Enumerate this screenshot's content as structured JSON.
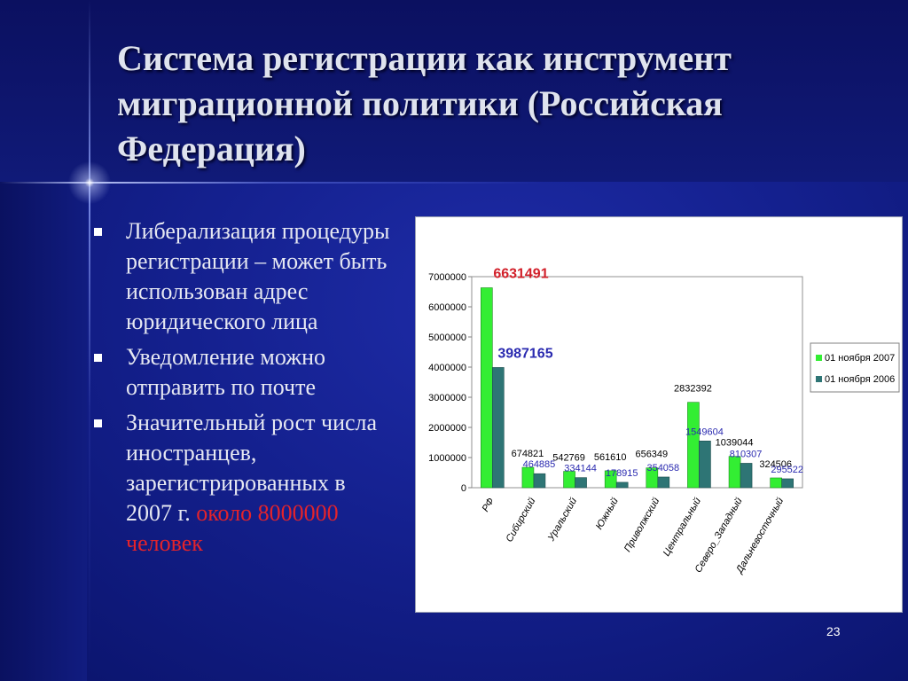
{
  "slide": {
    "title": "Система регистрации как инструмент миграционной политики (Российская Федерация)",
    "page_number": "23",
    "bullets": [
      {
        "text": "Либерализация процедуры регистрации – может быть использован адрес юридического лица"
      },
      {
        "text": "Уведомление можно отправить по почте"
      },
      {
        "text": "Значительный рост числа иностранцев, зарегистрированных в 2007 г. ",
        "highlight": "около 8000000 человек"
      }
    ]
  },
  "colors": {
    "series_2007": "#33ee33",
    "series_2006": "#2e7575",
    "label_2007": "#000000",
    "label_2006": "#2a2ab0",
    "label_rf_2007": "#d2202a",
    "highlight_text": "#e4232b"
  },
  "chart_data": {
    "type": "bar",
    "categories": [
      "РФ",
      "Сибирский",
      "Уральский",
      "Южный",
      "Приволжский",
      "Центральный",
      "Северо_Западный",
      "Дальневосточный"
    ],
    "series": [
      {
        "name": "01 ноября 2007",
        "values": [
          6631491,
          674821,
          542769,
          561610,
          656349,
          2832392,
          1039044,
          324506
        ]
      },
      {
        "name": "01 ноября 2006",
        "values": [
          3987165,
          464885,
          334144,
          178915,
          354058,
          1549604,
          810307,
          295522
        ]
      }
    ],
    "value_labels_2007": [
      "6631491",
      "674821",
      "542769",
      "561610",
      "656349",
      "2832392",
      "1039044",
      "324506"
    ],
    "value_labels_2006": [
      "3987165",
      "464885",
      "334144",
      "178915",
      "354058",
      "1549604",
      "810307",
      "295522"
    ],
    "y_ticks": [
      "0",
      "1000000",
      "2000000",
      "3000000",
      "4000000",
      "5000000",
      "6000000",
      "7000000"
    ],
    "ylim": [
      0,
      7000000
    ],
    "grid": false,
    "legend_position": "right"
  }
}
